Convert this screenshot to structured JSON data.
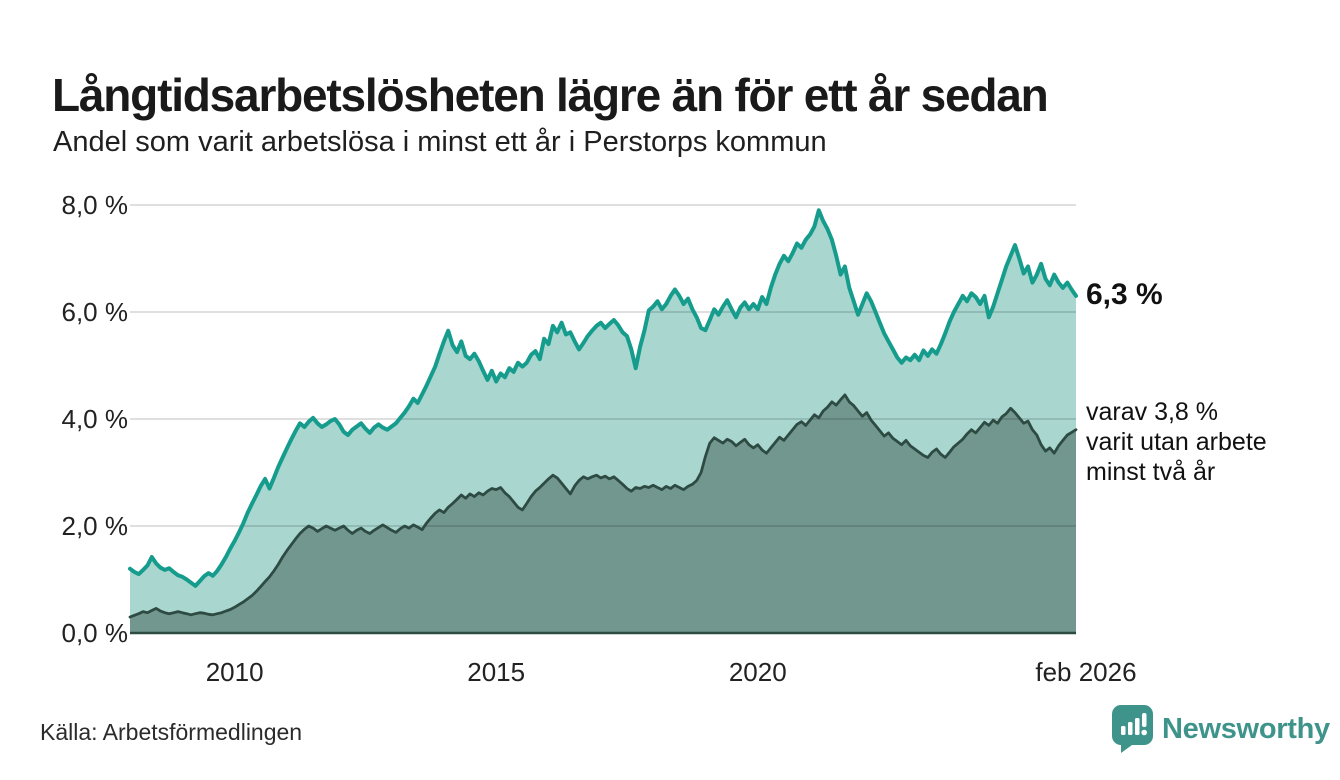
{
  "header": {
    "title": "Långtidsarbetslösheten lägre än för ett år sedan",
    "subtitle": "Andel som varit arbetslösa i minst ett år i Perstorps kommun"
  },
  "chart_data": {
    "type": "area",
    "title": "Långtidsarbetslösheten lägre än för ett år sedan",
    "subtitle": "Andel som varit arbetslösa i minst ett år i Perstorps kommun",
    "unit": "%",
    "x_start": "2008-01",
    "x_end": "2026-02",
    "ylim": [
      0,
      8
    ],
    "grid": true,
    "legend_position": "none",
    "y_axis": {
      "ticks": [
        {
          "v": 8,
          "label": "8,0 %"
        },
        {
          "v": 6,
          "label": "6,0 %"
        },
        {
          "v": 4,
          "label": "4,0 %"
        },
        {
          "v": 2,
          "label": "2,0 %"
        },
        {
          "v": 0,
          "label": "0,0 %"
        }
      ]
    },
    "x_axis": {
      "ticks": [
        {
          "v": 2010,
          "label": "2010"
        },
        {
          "v": 2015,
          "label": "2015"
        },
        {
          "v": 2020,
          "label": "2020"
        },
        {
          "v": 2026.083,
          "label": "feb 2026"
        }
      ]
    },
    "series": [
      {
        "name": "Andel arbetslösa minst ett år",
        "latest_value": 6.3,
        "line_color": "#169c8d",
        "fill_color": "#a9d6cf",
        "line_width": 4,
        "values": [
          1.2,
          1.14,
          1.1,
          1.18,
          1.26,
          1.42,
          1.3,
          1.22,
          1.18,
          1.21,
          1.14,
          1.08,
          1.05,
          1.0,
          0.94,
          0.88,
          0.97,
          1.06,
          1.12,
          1.07,
          1.16,
          1.28,
          1.42,
          1.58,
          1.72,
          1.88,
          2.05,
          2.25,
          2.42,
          2.58,
          2.75,
          2.88,
          2.7,
          2.9,
          3.1,
          3.28,
          3.45,
          3.62,
          3.78,
          3.92,
          3.85,
          3.95,
          4.02,
          3.92,
          3.85,
          3.9,
          3.96,
          4.0,
          3.9,
          3.76,
          3.7,
          3.8,
          3.86,
          3.92,
          3.82,
          3.74,
          3.84,
          3.9,
          3.84,
          3.8,
          3.86,
          3.92,
          4.02,
          4.12,
          4.24,
          4.38,
          4.3,
          4.46,
          4.62,
          4.8,
          4.98,
          5.22,
          5.45,
          5.65,
          5.38,
          5.25,
          5.45,
          5.18,
          5.12,
          5.22,
          5.08,
          4.9,
          4.73,
          4.9,
          4.7,
          4.85,
          4.78,
          4.95,
          4.88,
          5.05,
          4.98,
          5.05,
          5.2,
          5.27,
          5.12,
          5.5,
          5.4,
          5.74,
          5.62,
          5.8,
          5.58,
          5.62,
          5.45,
          5.3,
          5.42,
          5.55,
          5.65,
          5.74,
          5.8,
          5.7,
          5.78,
          5.85,
          5.75,
          5.62,
          5.55,
          5.3,
          4.95,
          5.35,
          5.65,
          6.03,
          6.1,
          6.2,
          6.05,
          6.15,
          6.3,
          6.42,
          6.3,
          6.15,
          6.25,
          6.05,
          5.9,
          5.7,
          5.66,
          5.85,
          6.05,
          5.95,
          6.1,
          6.22,
          6.05,
          5.9,
          6.08,
          6.18,
          6.05,
          6.15,
          6.05,
          6.28,
          6.15,
          6.45,
          6.7,
          6.9,
          7.05,
          6.95,
          7.1,
          7.28,
          7.2,
          7.35,
          7.45,
          7.6,
          7.9,
          7.7,
          7.55,
          7.35,
          7.05,
          6.7,
          6.85,
          6.45,
          6.2,
          5.95,
          6.15,
          6.35,
          6.2,
          6.0,
          5.8,
          5.6,
          5.45,
          5.3,
          5.15,
          5.05,
          5.15,
          5.1,
          5.2,
          5.1,
          5.28,
          5.18,
          5.3,
          5.22,
          5.4,
          5.6,
          5.82,
          6.0,
          6.15,
          6.3,
          6.2,
          6.35,
          6.28,
          6.15,
          6.3,
          5.9,
          6.1,
          6.35,
          6.6,
          6.85,
          7.05,
          7.25,
          7.0,
          6.72,
          6.85,
          6.55,
          6.7,
          6.9,
          6.62,
          6.5,
          6.7,
          6.55,
          6.45,
          6.55,
          6.42,
          6.3
        ]
      },
      {
        "name": "varav utan arbete minst två år",
        "latest_value": 3.8,
        "line_color": "#2d4b43",
        "fill_color": "#72978e",
        "line_width": 2.8,
        "values": [
          0.3,
          0.33,
          0.36,
          0.4,
          0.38,
          0.42,
          0.46,
          0.41,
          0.38,
          0.36,
          0.38,
          0.4,
          0.38,
          0.36,
          0.34,
          0.36,
          0.38,
          0.37,
          0.35,
          0.34,
          0.36,
          0.38,
          0.41,
          0.44,
          0.48,
          0.53,
          0.58,
          0.64,
          0.7,
          0.78,
          0.87,
          0.96,
          1.05,
          1.16,
          1.28,
          1.42,
          1.54,
          1.65,
          1.76,
          1.86,
          1.94,
          2.0,
          1.96,
          1.9,
          1.95,
          2.0,
          1.96,
          1.92,
          1.96,
          2.0,
          1.92,
          1.86,
          1.92,
          1.96,
          1.9,
          1.86,
          1.92,
          1.97,
          2.02,
          1.97,
          1.92,
          1.88,
          1.95,
          2.0,
          1.96,
          2.02,
          1.98,
          1.93,
          2.05,
          2.15,
          2.24,
          2.3,
          2.25,
          2.35,
          2.42,
          2.5,
          2.58,
          2.52,
          2.6,
          2.55,
          2.62,
          2.58,
          2.65,
          2.7,
          2.68,
          2.72,
          2.62,
          2.55,
          2.45,
          2.35,
          2.3,
          2.42,
          2.55,
          2.65,
          2.72,
          2.8,
          2.88,
          2.95,
          2.9,
          2.8,
          2.7,
          2.6,
          2.75,
          2.85,
          2.92,
          2.88,
          2.92,
          2.95,
          2.9,
          2.93,
          2.88,
          2.92,
          2.85,
          2.78,
          2.7,
          2.65,
          2.72,
          2.7,
          2.74,
          2.72,
          2.76,
          2.72,
          2.68,
          2.74,
          2.7,
          2.76,
          2.72,
          2.68,
          2.74,
          2.78,
          2.85,
          3.0,
          3.3,
          3.55,
          3.65,
          3.6,
          3.55,
          3.62,
          3.58,
          3.5,
          3.56,
          3.62,
          3.52,
          3.46,
          3.52,
          3.42,
          3.36,
          3.46,
          3.56,
          3.66,
          3.6,
          3.7,
          3.8,
          3.9,
          3.95,
          3.88,
          3.98,
          4.08,
          4.02,
          4.15,
          4.22,
          4.32,
          4.26,
          4.36,
          4.45,
          4.32,
          4.25,
          4.15,
          4.05,
          4.12,
          3.98,
          3.88,
          3.78,
          3.68,
          3.74,
          3.64,
          3.58,
          3.52,
          3.6,
          3.5,
          3.44,
          3.38,
          3.32,
          3.28,
          3.38,
          3.44,
          3.34,
          3.28,
          3.38,
          3.48,
          3.55,
          3.62,
          3.72,
          3.8,
          3.74,
          3.84,
          3.94,
          3.88,
          3.98,
          3.92,
          4.04,
          4.1,
          4.2,
          4.12,
          4.02,
          3.92,
          3.96,
          3.8,
          3.7,
          3.52,
          3.4,
          3.46,
          3.36,
          3.5,
          3.6,
          3.7,
          3.75,
          3.8
        ]
      }
    ]
  },
  "annotations": {
    "latest_total": "6,3 %",
    "secondary_line1": "varav 3,8 %",
    "secondary_line2": "varit utan arbete",
    "secondary_line3": "minst två år"
  },
  "footer": {
    "source": "Källa: Arbetsförmedlingen",
    "brand_name": "Newsworthy"
  },
  "colors": {
    "accent_teal": "#169c8d",
    "dark_green": "#2d4b43",
    "light_fill": "#a9d6cf",
    "dark_fill": "#72978e",
    "gridline": "#e0e0e0",
    "brand": "#3e948b",
    "text": "#1a1a1a"
  }
}
